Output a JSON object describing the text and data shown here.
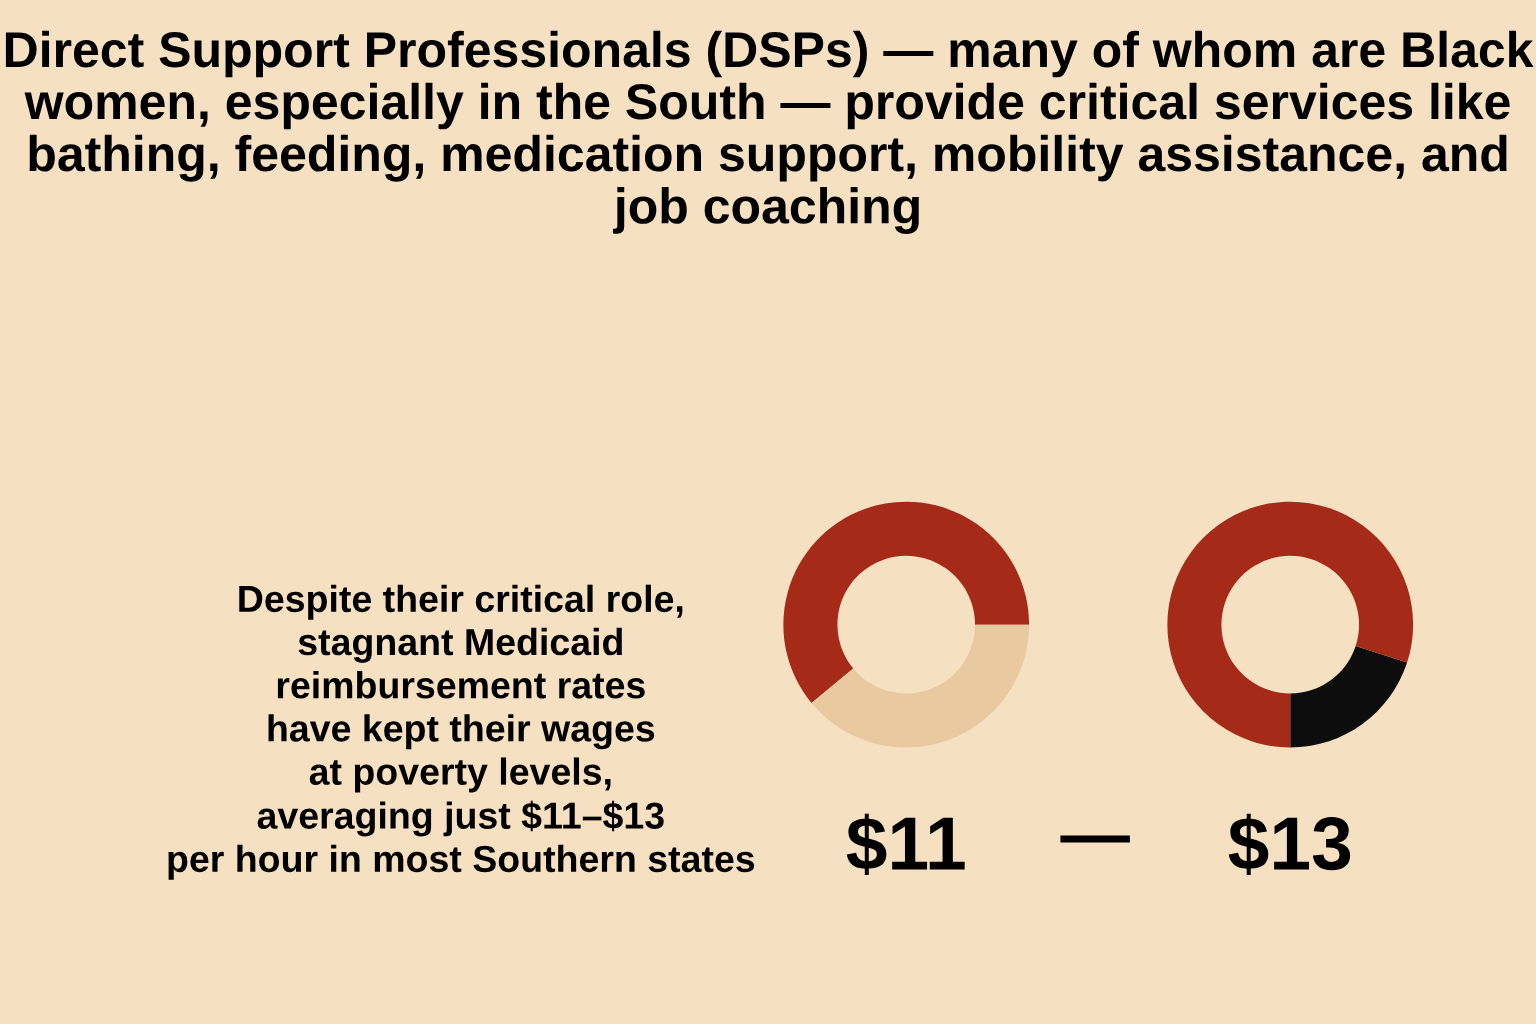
{
  "chart_data": [
    {
      "type": "other",
      "title": "Direct Support Professionals (DSPs) — many of whom are Black women, especially in the South — provide critical services like bathing, feeding, medication support, mobility assistance, and job coaching",
      "annotations": [
        "Despite their critical role,\nstagnant Medicaid\nreimbursement rates\nhave kept their wages\nat poverty levels,\naveraging just $11–$13\nper hour in most Southern states",
        "—"
      ]
    },
    {
      "type": "donut",
      "xlabel": "$11",
      "categories": [
        null,
        null
      ],
      "values": [
        61,
        39
      ],
      "colors": [
        "#a52a17",
        "#e8c9a0"
      ]
    },
    {
      "type": "donut",
      "xlabel": "$13",
      "categories": [
        null,
        null
      ],
      "values": [
        20,
        80
      ],
      "colors": [
        "#0d0d0d",
        "#a52a17"
      ]
    }
  ]
}
